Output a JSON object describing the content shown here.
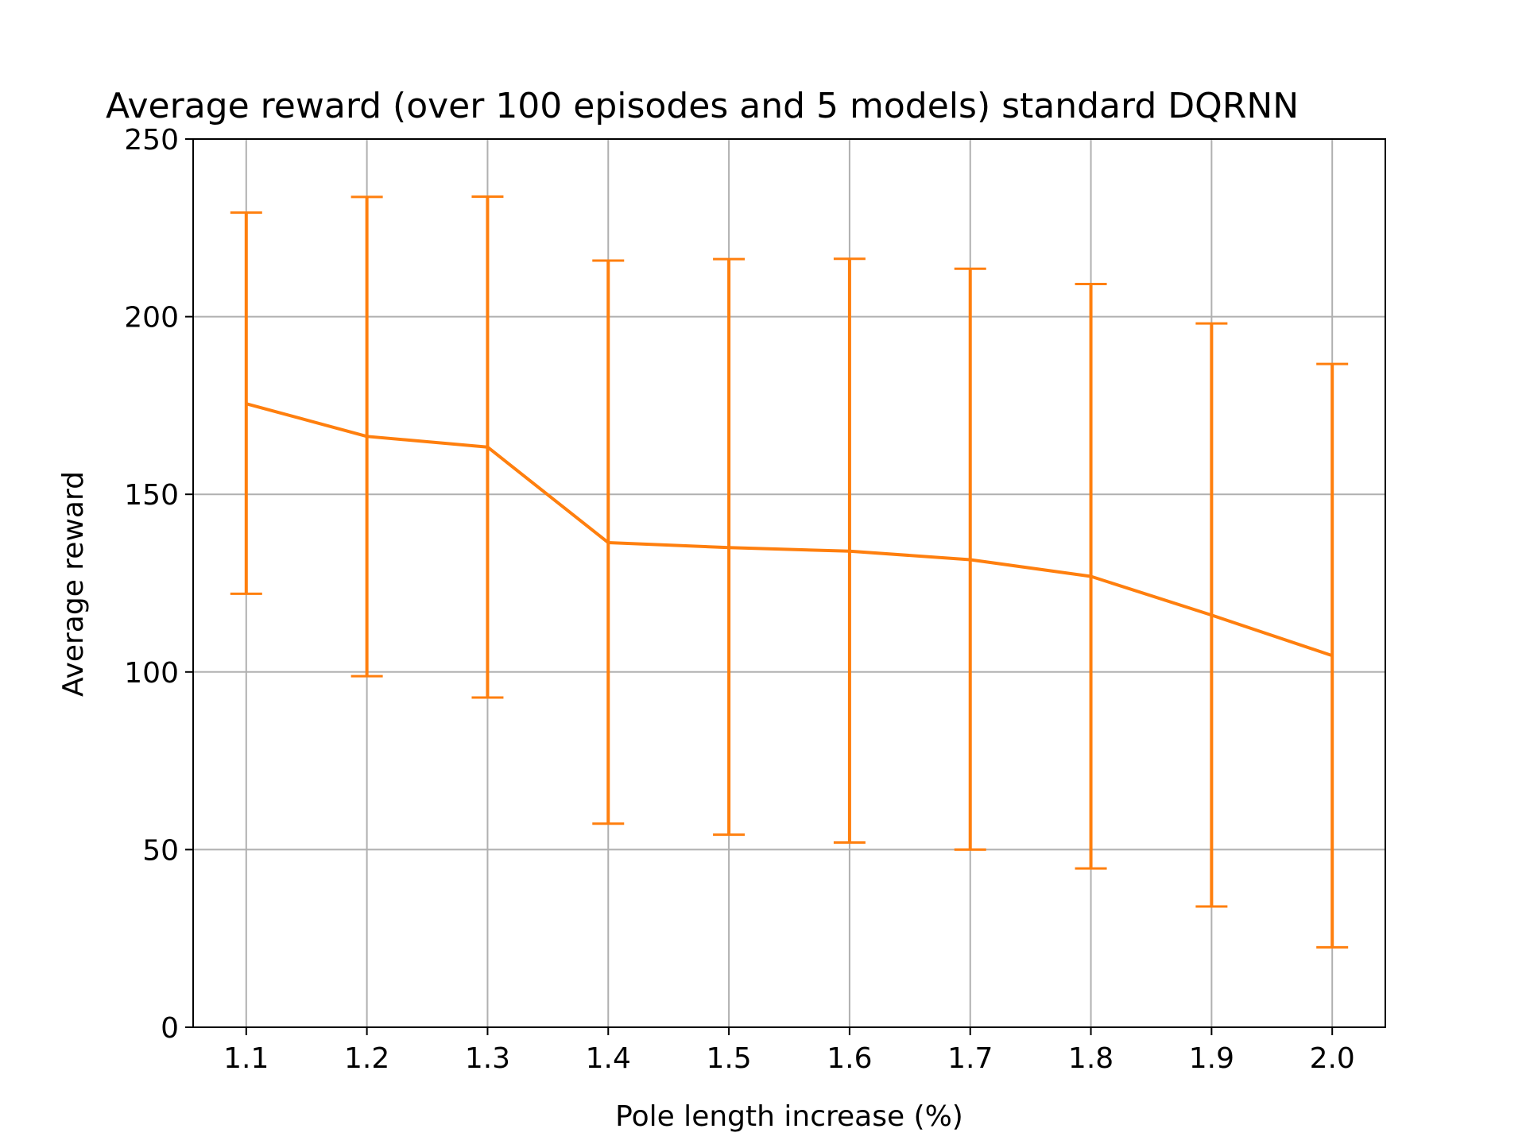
{
  "chart_data": {
    "type": "line",
    "title": "Average reward (over 100 episodes and 5 models) standard DQRNN",
    "xlabel": "Pole length increase (%)",
    "ylabel": "Average reward",
    "x": [
      1.1,
      1.2,
      1.3,
      1.4,
      1.5,
      1.6,
      1.7,
      1.8,
      1.9,
      2.0
    ],
    "x_tick_labels": [
      "1.1",
      "1.2",
      "1.3",
      "1.4",
      "1.5",
      "1.6",
      "1.7",
      "1.8",
      "1.9",
      "2.0"
    ],
    "y_ticks": [
      0,
      50,
      100,
      150,
      200,
      250
    ],
    "y_tick_labels": [
      "0",
      "50",
      "100",
      "150",
      "200",
      "250"
    ],
    "xlim": [
      1.056,
      2.044
    ],
    "ylim": [
      0,
      250
    ],
    "grid": true,
    "series": [
      {
        "color": "#ff7f0e",
        "values": [
          175.5,
          166.3,
          163.3,
          136.4,
          135.0,
          134.0,
          131.6,
          126.9,
          116.0,
          104.6
        ],
        "error_lower": [
          122.0,
          98.8,
          92.8,
          57.3,
          54.2,
          52.0,
          50.0,
          44.7,
          34.0,
          22.5
        ],
        "error_upper": [
          229.3,
          233.7,
          233.8,
          215.8,
          216.2,
          216.3,
          213.5,
          209.2,
          198.1,
          186.7
        ]
      }
    ]
  }
}
